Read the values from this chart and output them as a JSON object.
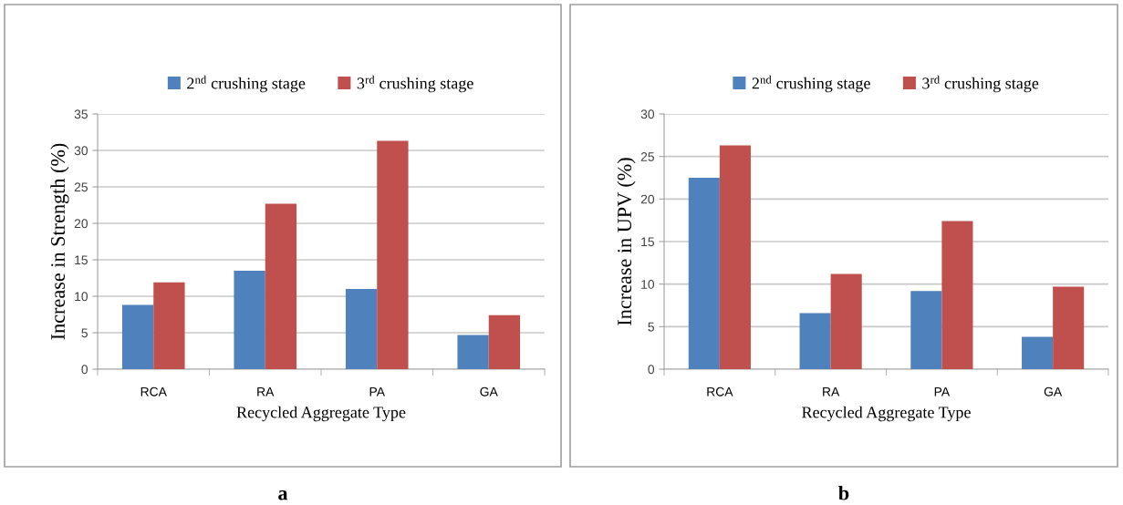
{
  "chart_data": [
    {
      "type": "bar",
      "xlabel": "Recycled Aggregate Type",
      "ylabel": "Increase in Strength (%)",
      "categories": [
        "RCA",
        "RA",
        "PA",
        "GA"
      ],
      "series": [
        {
          "name": "2$^{nd}$ crushing stage",
          "color": "#4f81bd",
          "values": [
            8.8,
            13.5,
            11.0,
            4.7
          ]
        },
        {
          "name": "3$^{rd}$ crushing stage",
          "color": "#c0504d",
          "values": [
            11.9,
            22.7,
            31.3,
            7.4
          ]
        }
      ],
      "ylim": [
        0,
        35
      ],
      "yticks": [
        0,
        5,
        10,
        15,
        20,
        25,
        30,
        35
      ],
      "grid": "y",
      "legend": "top",
      "annotations": [
        "a"
      ]
    },
    {
      "type": "bar",
      "xlabel": "Recycled Aggregate Type",
      "ylabel": "Increase in UPV (%)",
      "categories": [
        "RCA",
        "RA",
        "PA",
        "GA"
      ],
      "series": [
        {
          "name": "2$^{nd}$ crushing stage",
          "color": "#4f81bd",
          "values": [
            22.5,
            6.6,
            9.2,
            3.8
          ]
        },
        {
          "name": "3$^{rd}$ crushing stage",
          "color": "#c0504d",
          "values": [
            26.3,
            11.2,
            17.4,
            9.7
          ]
        }
      ],
      "ylim": [
        0,
        30
      ],
      "yticks": [
        0,
        5,
        10,
        15,
        20,
        25,
        30
      ],
      "grid": "y",
      "legend": "top",
      "annotations": [
        "b"
      ]
    }
  ]
}
